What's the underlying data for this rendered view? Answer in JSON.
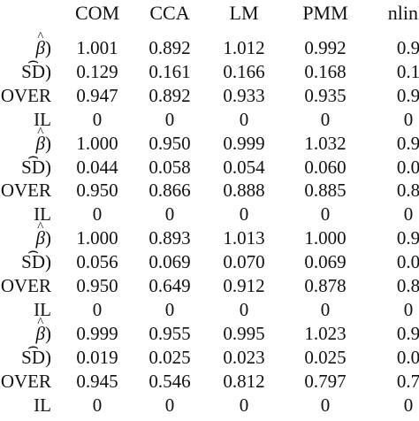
{
  "table": {
    "columns": [
      "COM",
      "CCA",
      "LM",
      "PMM",
      "nlinP"
    ],
    "rows": [
      {
        "label": "β)",
        "values": [
          "1.001",
          "0.892",
          "1.012",
          "0.992",
          "0.9"
        ]
      },
      {
        "label": "SD)",
        "values": [
          "0.129",
          "0.161",
          "0.166",
          "0.168",
          "0.1"
        ]
      },
      {
        "label": "OVER",
        "values": [
          "0.947",
          "0.892",
          "0.933",
          "0.935",
          "0.9"
        ]
      },
      {
        "label": "IL",
        "values": [
          "0",
          "0",
          "0",
          "0",
          "0"
        ]
      },
      {
        "label": "β)",
        "values": [
          "1.000",
          "0.950",
          "0.999",
          "1.032",
          "0.9"
        ]
      },
      {
        "label": "SD)",
        "values": [
          "0.044",
          "0.058",
          "0.054",
          "0.060",
          "0.0"
        ]
      },
      {
        "label": "OVER",
        "values": [
          "0.950",
          "0.866",
          "0.888",
          "0.885",
          "0.8"
        ]
      },
      {
        "label": "IL",
        "values": [
          "0",
          "0",
          "0",
          "0",
          "0"
        ]
      },
      {
        "label": "β)",
        "values": [
          "1.000",
          "0.893",
          "1.013",
          "1.000",
          "0.9"
        ]
      },
      {
        "label": "SD)",
        "values": [
          "0.056",
          "0.069",
          "0.070",
          "0.069",
          "0.0"
        ]
      },
      {
        "label": "OVER",
        "values": [
          "0.950",
          "0.649",
          "0.912",
          "0.878",
          "0.8"
        ]
      },
      {
        "label": "IL",
        "values": [
          "0",
          "0",
          "0",
          "0",
          "0"
        ]
      },
      {
        "label": "β)",
        "values": [
          "0.999",
          "0.955",
          "0.995",
          "1.023",
          "0.9"
        ]
      },
      {
        "label": "SD)",
        "values": [
          "0.019",
          "0.025",
          "0.023",
          "0.025",
          "0.0"
        ]
      },
      {
        "label": "OVER",
        "values": [
          "0.945",
          "0.546",
          "0.812",
          "0.797",
          "0.7"
        ]
      },
      {
        "label": "IL",
        "values": [
          "0",
          "0",
          "0",
          "0",
          "0"
        ]
      }
    ]
  }
}
